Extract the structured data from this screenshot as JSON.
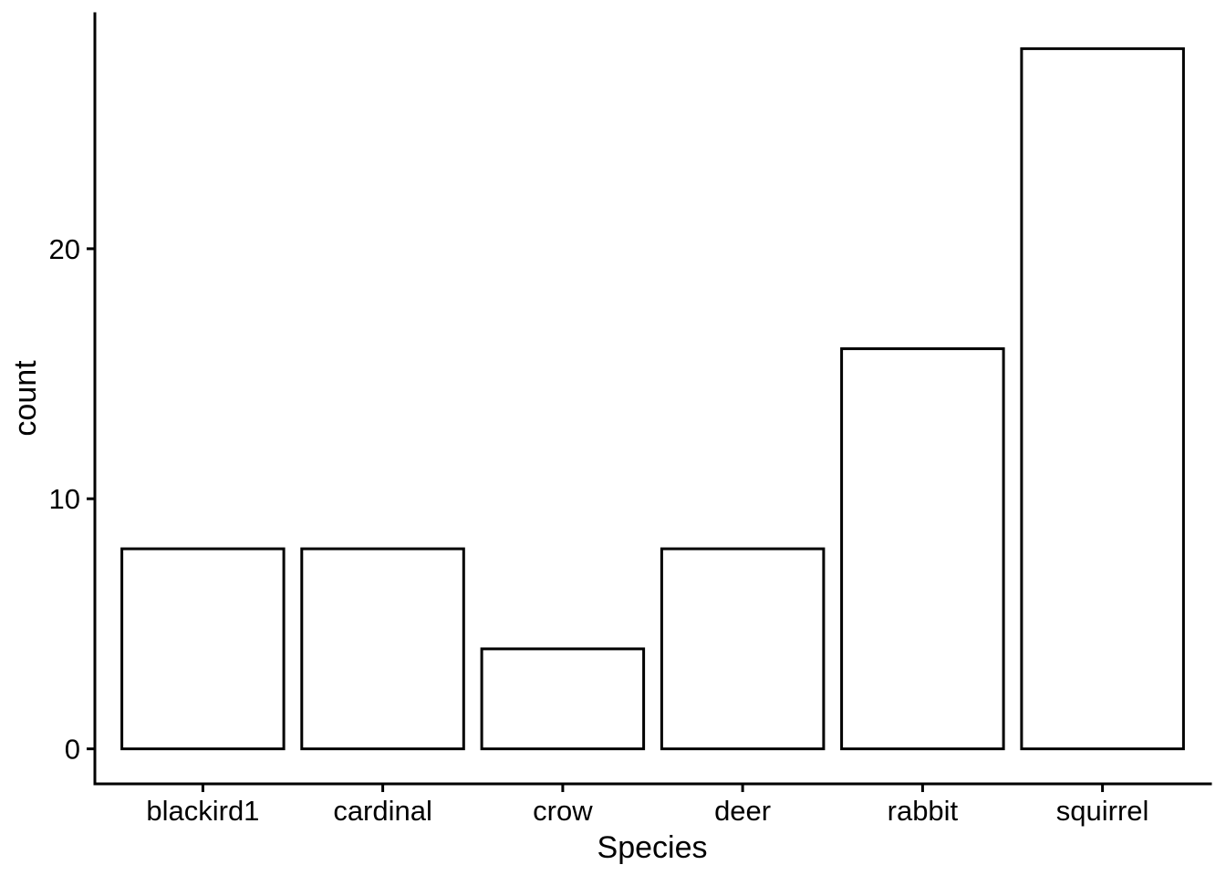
{
  "chart_data": {
    "type": "bar",
    "title": "",
    "xlabel": "Species",
    "ylabel": "count",
    "categories": [
      "blackird1",
      "cardinal",
      "crow",
      "deer",
      "rabbit",
      "squirrel"
    ],
    "values": [
      8,
      8,
      4,
      8,
      16,
      28
    ],
    "y_ticks": [
      0,
      10,
      20
    ],
    "ylim": [
      0,
      28
    ],
    "grid": false,
    "legend": "none",
    "colors": {
      "background": "#FFFFFF",
      "bar_fill": "#FFFFFF",
      "bar_stroke": "#000000",
      "axis": "#000000",
      "text": "#000000"
    }
  }
}
